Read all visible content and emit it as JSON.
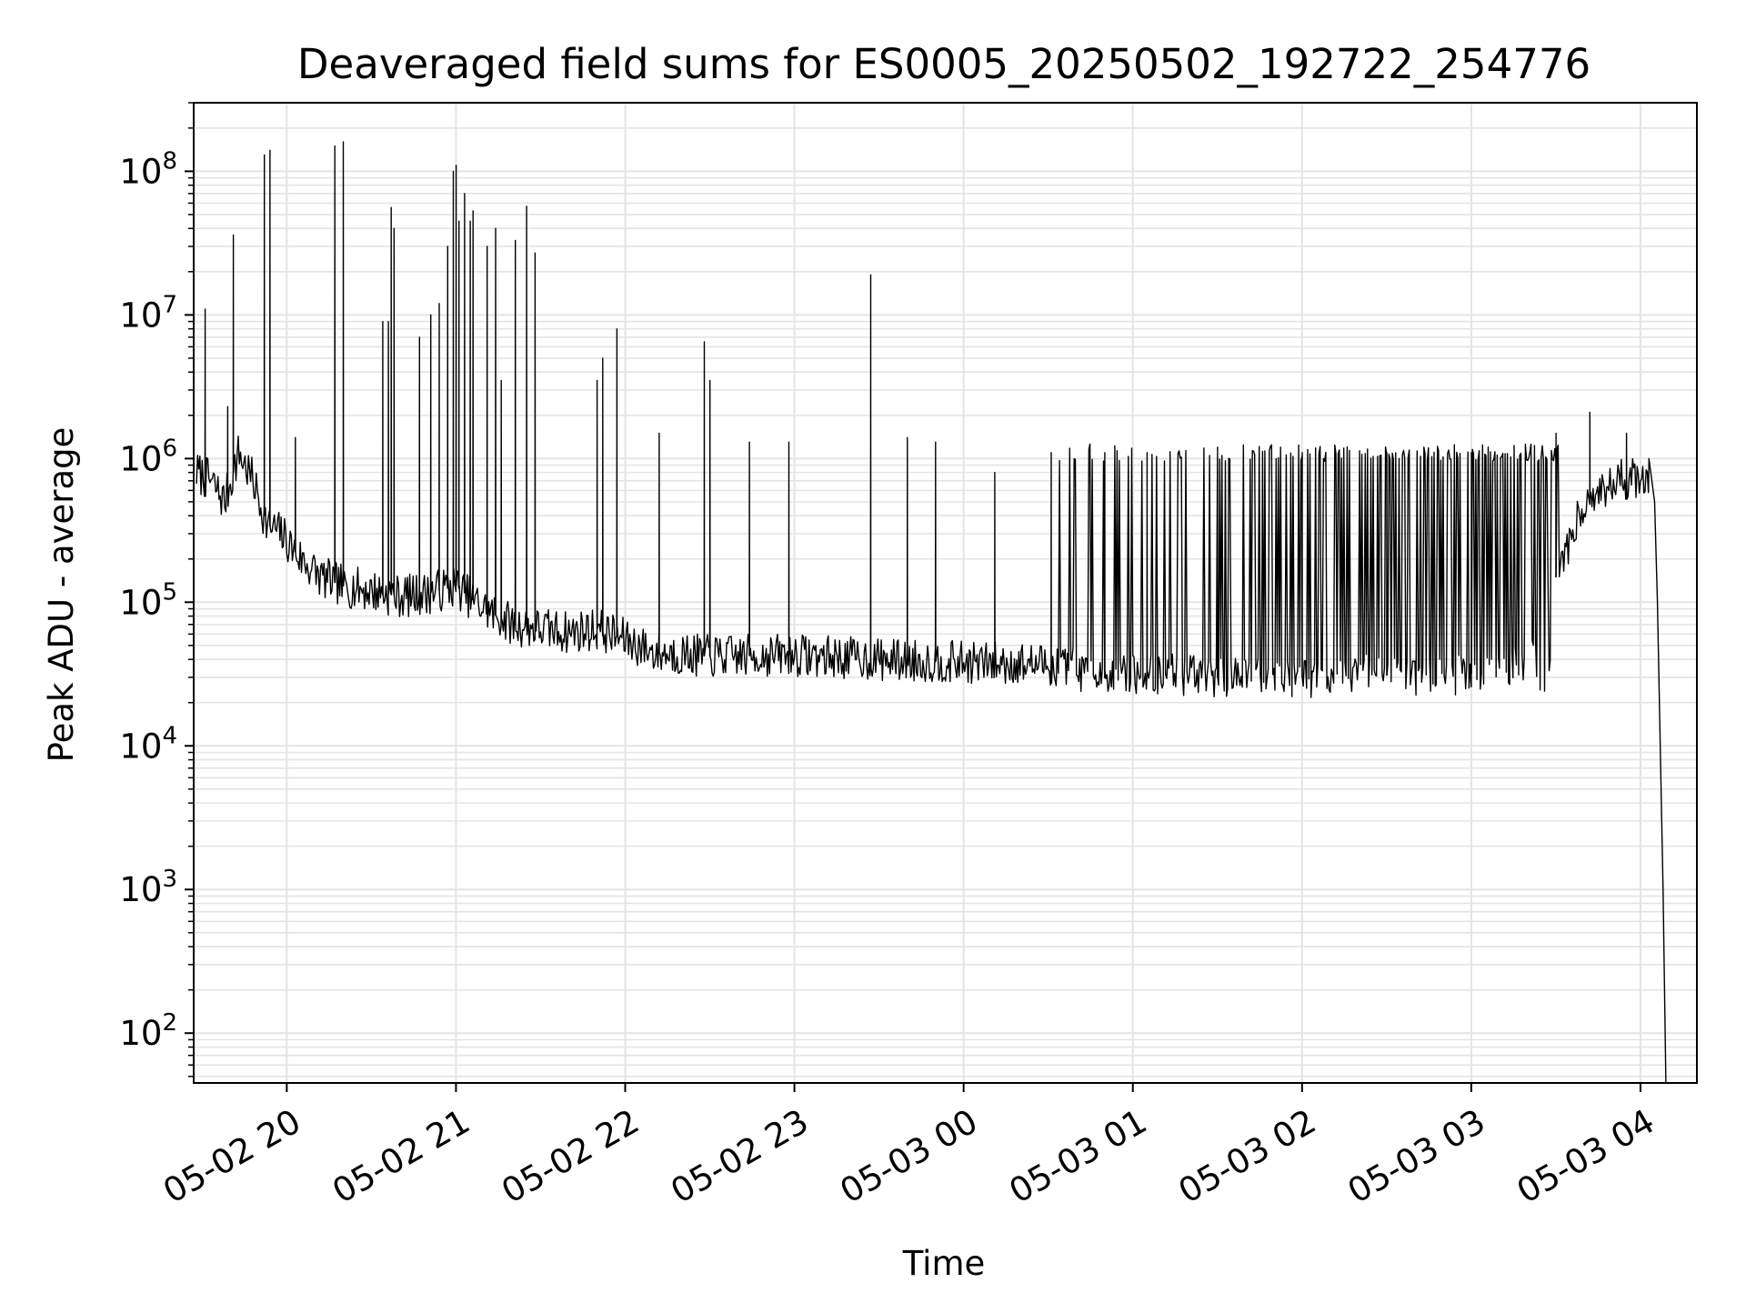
{
  "chart_data": {
    "type": "line",
    "title": "Deaveraged field sums for ES0005_20250502_192722_254776",
    "xlabel": "Time",
    "ylabel": "Peak ADU - average",
    "yscale": "log",
    "xlim": [
      "2025-05-02 19:27",
      "2025-05-03 04:20"
    ],
    "ylim": [
      45,
      300000000
    ],
    "grid": true,
    "line_color": "#000000",
    "x_ticks": [
      "05-02 20",
      "05-02 21",
      "05-02 22",
      "05-02 23",
      "05-03 00",
      "05-03 01",
      "05-03 02",
      "05-03 03",
      "05-03 04"
    ],
    "y_ticks": [
      {
        "base": "10",
        "exp": "2",
        "value": 100
      },
      {
        "base": "10",
        "exp": "3",
        "value": 1000
      },
      {
        "base": "10",
        "exp": "4",
        "value": 10000
      },
      {
        "base": "10",
        "exp": "5",
        "value": 100000
      },
      {
        "base": "10",
        "exp": "6",
        "value": 1000000
      },
      {
        "base": "10",
        "exp": "7",
        "value": 10000000
      },
      {
        "base": "10",
        "exp": "8",
        "value": 100000000
      }
    ],
    "series": [
      {
        "baseline": [
          [
            "2025-05-02 19:28",
            800000
          ],
          [
            "2025-05-02 19:33",
            700000
          ],
          [
            "2025-05-02 19:38",
            500000
          ],
          [
            "2025-05-02 19:43",
            1100000
          ],
          [
            "2025-05-02 19:48",
            700000
          ],
          [
            "2025-05-02 19:53",
            350000
          ],
          [
            "2025-05-02 19:58",
            300000
          ],
          [
            "2025-05-02 20:05",
            200000
          ],
          [
            "2025-05-02 20:12",
            150000
          ],
          [
            "2025-05-02 20:20",
            130000
          ],
          [
            "2025-05-02 20:30",
            120000
          ],
          [
            "2025-05-02 20:40",
            110000
          ],
          [
            "2025-05-02 20:50",
            115000
          ],
          [
            "2025-05-02 21:00",
            130000
          ],
          [
            "2025-05-02 21:10",
            90000
          ],
          [
            "2025-05-02 21:20",
            70000
          ],
          [
            "2025-05-02 21:30",
            65000
          ],
          [
            "2025-05-02 21:40",
            62000
          ],
          [
            "2025-05-02 21:50",
            65000
          ],
          [
            "2025-05-02 22:00",
            55000
          ],
          [
            "2025-05-02 22:10",
            45000
          ],
          [
            "2025-05-02 22:30",
            42000
          ],
          [
            "2025-05-02 23:00",
            43000
          ],
          [
            "2025-05-02 23:30",
            40000
          ],
          [
            "2025-05-03 00:00",
            38000
          ],
          [
            "2025-05-03 00:30",
            37000
          ],
          [
            "2025-05-03 01:00",
            32000
          ],
          [
            "2025-05-03 01:30",
            30000
          ],
          [
            "2025-05-03 02:00",
            30000
          ],
          [
            "2025-05-03 02:30",
            31000
          ],
          [
            "2025-05-03 03:00",
            32000
          ],
          [
            "2025-05-03 03:20",
            40000
          ],
          [
            "2025-05-03 03:30",
            150000
          ],
          [
            "2025-05-03 03:40",
            500000
          ],
          [
            "2025-05-03 03:50",
            700000
          ],
          [
            "2025-05-03 04:00",
            750000
          ],
          [
            "2025-05-03 04:03",
            800000
          ]
        ],
        "peaks": [
          [
            "2025-05-02 19:31",
            11000000
          ],
          [
            "2025-05-02 19:39",
            2300000
          ],
          [
            "2025-05-02 19:41",
            36000000
          ],
          [
            "2025-05-02 19:52",
            130000000
          ],
          [
            "2025-05-02 19:54",
            140000000
          ],
          [
            "2025-05-02 20:03",
            1400000
          ],
          [
            "2025-05-02 20:17",
            150000000
          ],
          [
            "2025-05-02 20:20",
            160000000
          ],
          [
            "2025-05-02 20:34",
            9000000
          ],
          [
            "2025-05-02 20:36",
            9000000
          ],
          [
            "2025-05-02 20:37",
            56000000
          ],
          [
            "2025-05-02 20:38",
            40000000
          ],
          [
            "2025-05-02 20:47",
            7000000
          ],
          [
            "2025-05-02 20:51",
            10000000
          ],
          [
            "2025-05-02 20:54",
            12000000
          ],
          [
            "2025-05-02 20:57",
            30000000
          ],
          [
            "2025-05-02 20:59",
            100000000
          ],
          [
            "2025-05-02 21:00",
            110000000
          ],
          [
            "2025-05-02 21:01",
            45000000
          ],
          [
            "2025-05-02 21:03",
            70000000
          ],
          [
            "2025-05-02 21:05",
            45000000
          ],
          [
            "2025-05-02 21:06",
            53000000
          ],
          [
            "2025-05-02 21:11",
            30000000
          ],
          [
            "2025-05-02 21:14",
            40000000
          ],
          [
            "2025-05-02 21:16",
            3500000
          ],
          [
            "2025-05-02 21:21",
            33000000
          ],
          [
            "2025-05-02 21:25",
            57000000
          ],
          [
            "2025-05-02 21:28",
            27000000
          ],
          [
            "2025-05-02 21:50",
            3500000
          ],
          [
            "2025-05-02 21:52",
            5000000
          ],
          [
            "2025-05-02 21:57",
            8000000
          ],
          [
            "2025-05-02 22:12",
            1500000
          ],
          [
            "2025-05-02 22:28",
            6500000
          ],
          [
            "2025-05-02 22:30",
            3500000
          ],
          [
            "2025-05-02 22:44",
            1300000
          ],
          [
            "2025-05-02 22:58",
            1300000
          ],
          [
            "2025-05-02 23:27",
            19000000
          ],
          [
            "2025-05-02 23:40",
            1400000
          ],
          [
            "2025-05-02 23:50",
            1300000
          ],
          [
            "2025-05-03 00:11",
            800000
          ],
          [
            "2025-05-03 00:31",
            1100000
          ],
          [
            "2025-05-03 00:50",
            1100000
          ],
          [
            "2025-05-03 01:05",
            1100000
          ],
          [
            "2025-05-03 01:30",
            1200000
          ],
          [
            "2025-05-03 02:00",
            1100000
          ],
          [
            "2025-05-03 02:30",
            1100000
          ],
          [
            "2025-05-03 03:00",
            1100000
          ],
          [
            "2025-05-03 03:30",
            1500000
          ],
          [
            "2025-05-03 03:42",
            2100000
          ],
          [
            "2025-05-03 03:55",
            1500000
          ]
        ],
        "oscillation_bands": [
          [
            "2025-05-03 00:31",
            "2025-05-03 03:31",
            1100000,
            30000
          ]
        ],
        "tail": [
          [
            "2025-05-03 04:03",
            1000000
          ],
          [
            "2025-05-03 04:05",
            500000
          ],
          [
            "2025-05-03 04:06",
            100000
          ],
          [
            "2025-05-03 04:07",
            10000
          ],
          [
            "2025-05-03 04:08",
            1000
          ],
          [
            "2025-05-03 04:09",
            45
          ]
        ]
      }
    ]
  }
}
